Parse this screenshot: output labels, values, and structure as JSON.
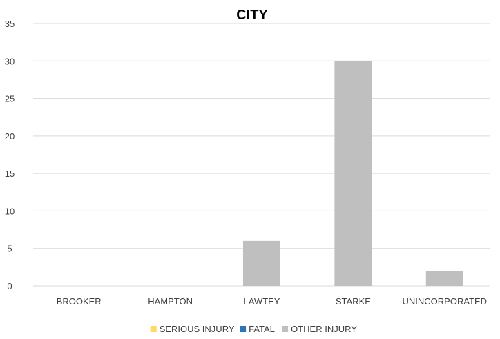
{
  "chart_data": {
    "type": "bar",
    "title": "CITY",
    "xlabel": "",
    "ylabel": "",
    "categories": [
      "BROOKER",
      "HAMPTON",
      "LAWTEY",
      "STARKE",
      "UNINCORPORATED"
    ],
    "series": [
      {
        "name": "SERIOUS INJURY",
        "color": "#ffd966",
        "values": [
          0,
          0,
          0,
          0,
          0
        ]
      },
      {
        "name": "FATAL",
        "color": "#2e75b6",
        "values": [
          0,
          0,
          0,
          0,
          0
        ]
      },
      {
        "name": "OTHER INJURY",
        "color": "#bfbfbf",
        "values": [
          0,
          0,
          6,
          30,
          2
        ]
      }
    ],
    "ylim": [
      0,
      35
    ],
    "yticks": [
      "0",
      "5",
      "10",
      "15",
      "20",
      "25",
      "30",
      "35"
    ],
    "grid": true,
    "legend_position": "bottom"
  }
}
